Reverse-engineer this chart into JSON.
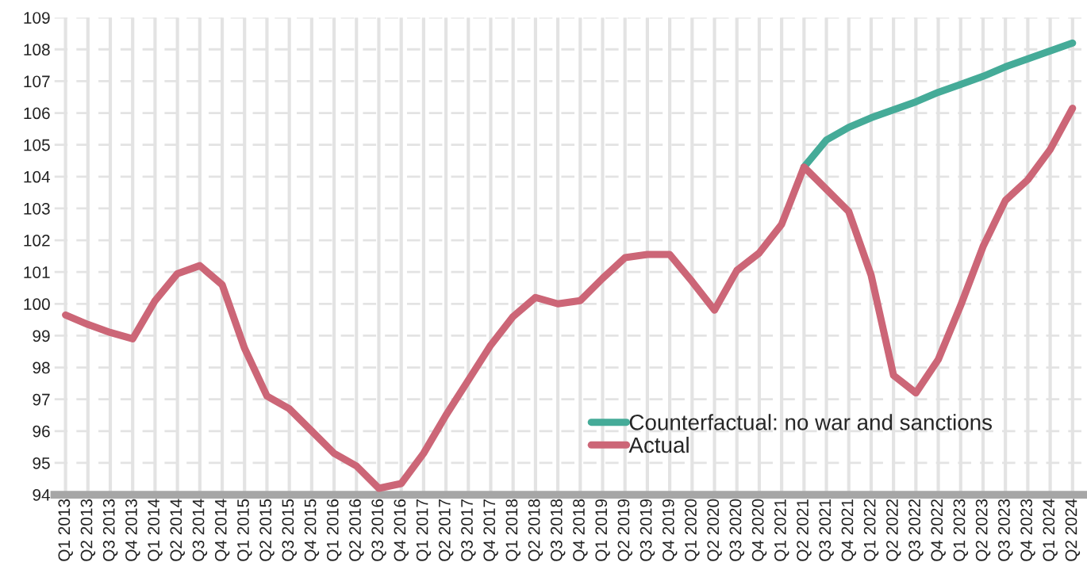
{
  "chart_data": {
    "type": "line",
    "categories": [
      "Q1 2013",
      "Q2 2013",
      "Q3 2013",
      "Q4 2013",
      "Q1 2014",
      "Q2 2014",
      "Q3 2014",
      "Q4 2014",
      "Q1 2015",
      "Q2 2015",
      "Q3 2015",
      "Q4 2015",
      "Q1 2016",
      "Q2 2016",
      "Q3 2016",
      "Q4 2016",
      "Q1 2017",
      "Q2 2017",
      "Q3 2017",
      "Q4 2017",
      "Q1 2018",
      "Q2 2018",
      "Q3 2018",
      "Q4 2018",
      "Q1 2019",
      "Q2 2019",
      "Q3 2019",
      "Q4 2019",
      "Q1 2020",
      "Q2 2020",
      "Q3 2020",
      "Q4 2020",
      "Q1 2021",
      "Q2 2021",
      "Q3 2021",
      "Q4 2021",
      "Q1 2022",
      "Q2 2022",
      "Q3 2022",
      "Q4 2022",
      "Q1 2023",
      "Q2 2023",
      "Q3 2023",
      "Q4 2023",
      "Q1 2024",
      "Q2 2024"
    ],
    "series": [
      {
        "name": "Counterfactual: no war and sanctions",
        "color": "#45ab98",
        "values": [
          null,
          null,
          null,
          null,
          null,
          null,
          null,
          null,
          null,
          null,
          null,
          null,
          null,
          null,
          null,
          null,
          null,
          null,
          null,
          null,
          null,
          null,
          null,
          null,
          null,
          null,
          null,
          null,
          null,
          null,
          null,
          null,
          null,
          104.3,
          105.15,
          105.55,
          105.85,
          106.1,
          106.35,
          106.65,
          106.9,
          107.15,
          107.45,
          107.7,
          107.95,
          108.2
        ]
      },
      {
        "name": "Actual",
        "color": "#cc6677",
        "values": [
          99.65,
          99.35,
          99.1,
          98.9,
          100.1,
          100.95,
          101.2,
          100.6,
          98.6,
          97.1,
          96.7,
          96.0,
          95.3,
          94.9,
          94.2,
          94.35,
          95.3,
          96.5,
          97.6,
          98.7,
          99.6,
          100.2,
          100.0,
          100.1,
          100.8,
          101.45,
          101.55,
          101.55,
          100.7,
          99.8,
          101.05,
          101.6,
          102.5,
          104.3,
          103.6,
          102.9,
          100.9,
          97.75,
          97.2,
          98.25,
          99.95,
          101.8,
          103.25,
          103.9,
          104.85,
          106.15
        ]
      }
    ],
    "ylim": [
      94,
      109
    ],
    "yticks": [
      94,
      95,
      96,
      97,
      98,
      99,
      100,
      101,
      102,
      103,
      104,
      105,
      106,
      107,
      108,
      109
    ],
    "grid": true,
    "legend": "bottom right",
    "line_style": "solid",
    "marker": "none"
  }
}
